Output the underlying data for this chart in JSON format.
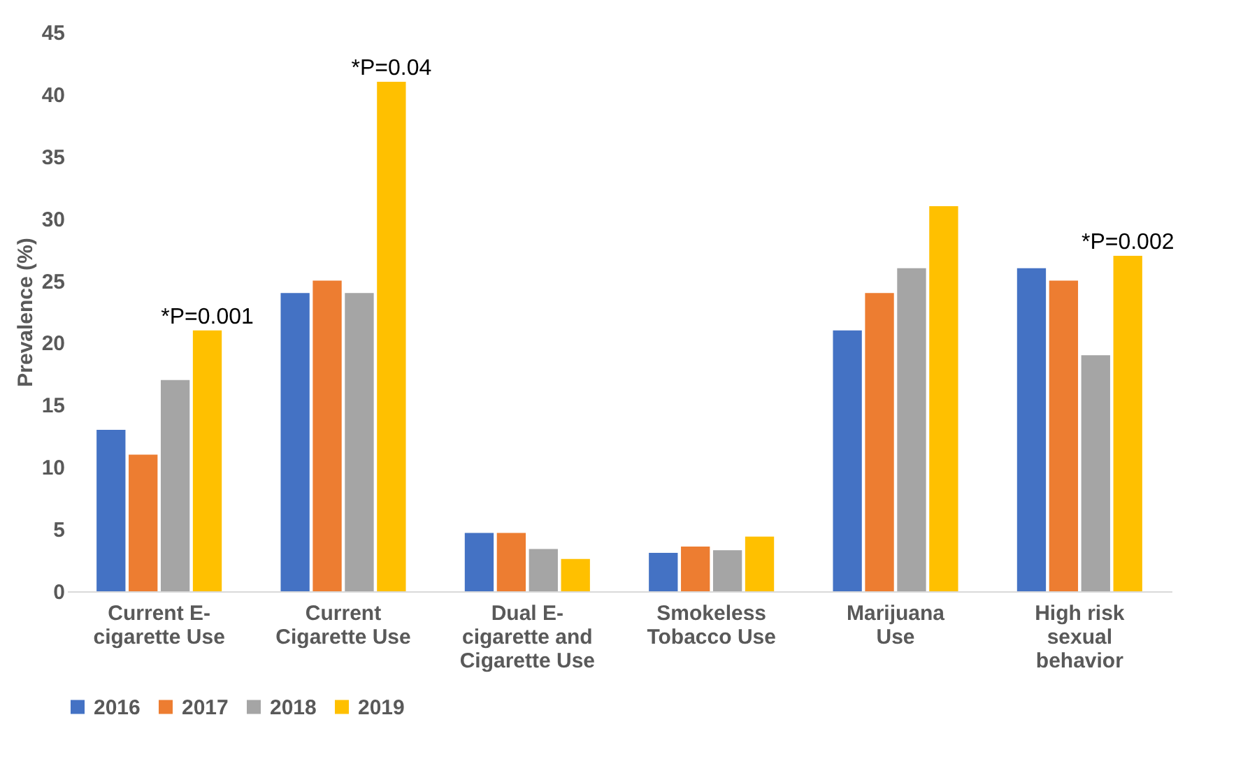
{
  "chart_data": {
    "type": "bar",
    "ylabel": "Prevalence (%)",
    "categories": [
      "Current E-\ncigarette Use",
      "Current\nCigarette Use",
      "Dual E-\ncigarette and\nCigarette Use",
      "Smokeless\nTobacco Use",
      "Marijuana\nUse",
      "High risk\nsexual\nbehavior"
    ],
    "series": [
      {
        "name": "2016",
        "color": "#4472c4",
        "values": [
          13,
          24,
          4.7,
          3.1,
          21,
          26
        ]
      },
      {
        "name": "2017",
        "color": "#ed7d31",
        "values": [
          11,
          25,
          4.7,
          3.6,
          24,
          25
        ]
      },
      {
        "name": "2018",
        "color": "#a5a5a5",
        "values": [
          17,
          24,
          3.4,
          3.3,
          26,
          19
        ]
      },
      {
        "name": "2019",
        "color": "#ffc000",
        "values": [
          21,
          41,
          2.6,
          4.4,
          31,
          27
        ]
      }
    ],
    "ylim": [
      0,
      45
    ],
    "yticks": [
      0,
      5,
      10,
      15,
      20,
      25,
      30,
      35,
      40,
      45
    ],
    "grid": false,
    "legend": "bottom",
    "annotations": [
      "*P=0.001",
      "*P=0.04",
      "*P=0.002"
    ]
  }
}
